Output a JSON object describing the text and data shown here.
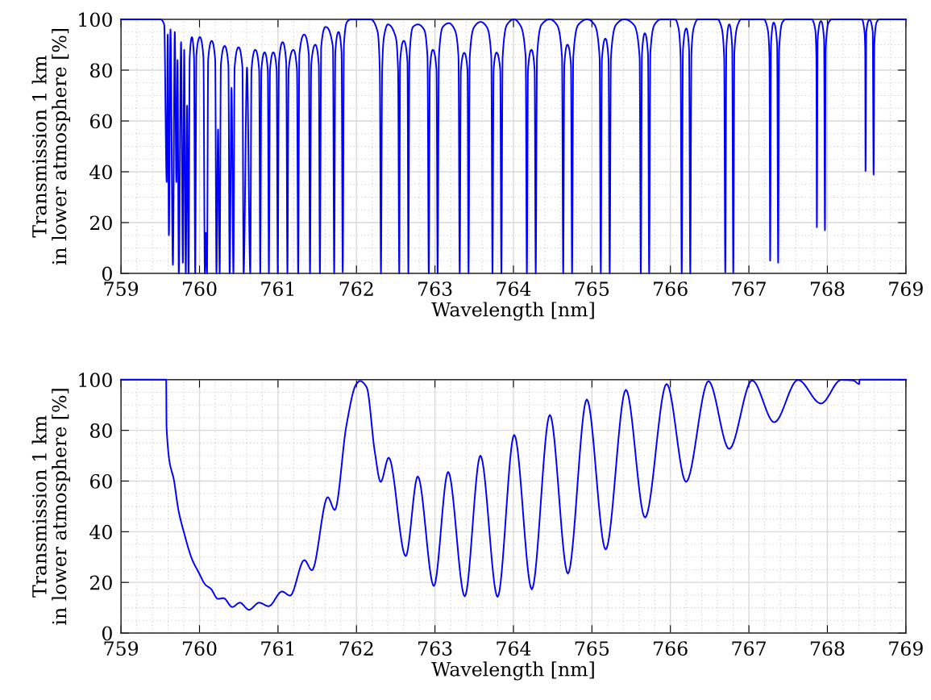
{
  "chart_data": [
    {
      "type": "line",
      "xlabel": "Wavelength [nm]",
      "ylabel": "Transmission 1 km\nin lower atmosphere [%]",
      "xlim": [
        759,
        769
      ],
      "ylim": [
        0,
        100
      ],
      "xticks": [
        759,
        760,
        761,
        762,
        763,
        764,
        765,
        766,
        767,
        768,
        769
      ],
      "yticks": [
        0,
        20,
        40,
        60,
        80,
        100
      ],
      "grid": true,
      "x": [
        759,
        759.5,
        759.55,
        759.582,
        759.595,
        759.61,
        759.63,
        759.661,
        759.685,
        759.705,
        759.72,
        759.736,
        759.765,
        759.788,
        759.805,
        759.825,
        759.842,
        759.86,
        759.875,
        759.903,
        759.93,
        759.945,
        759.96,
        760.005,
        760.05,
        760.068,
        760.082,
        760.096,
        760.11,
        760.155,
        760.2,
        760.216,
        760.236,
        760.257,
        760.272,
        760.32,
        760.368,
        760.384,
        760.408,
        760.432,
        760.447,
        760.497,
        760.547,
        760.562,
        760.605,
        760.647,
        760.662,
        760.71,
        760.76,
        760.774,
        760.788,
        760.829,
        760.87,
        760.884,
        760.898,
        760.94,
        760.983,
        760.997,
        761.012,
        761.059,
        761.105,
        761.12,
        761.135,
        761.196,
        761.242,
        761.257,
        761.272,
        761.334,
        761.393,
        761.408,
        761.423,
        761.475,
        761.52,
        761.534,
        761.55,
        761.606,
        761.7,
        761.716,
        761.73,
        761.771,
        761.81,
        761.825,
        761.84,
        761.88,
        761.93,
        762.18,
        762.27,
        762.297,
        762.312,
        762.327,
        762.35,
        762.4,
        762.5,
        762.53,
        762.545,
        762.555,
        762.603,
        762.65,
        762.661,
        762.675,
        762.72,
        762.784,
        762.86,
        762.905,
        762.921,
        762.935,
        762.973,
        763.02,
        763.034,
        763.05,
        763.1,
        763.178,
        763.25,
        763.3,
        763.315,
        763.33,
        763.373,
        763.415,
        763.428,
        763.443,
        763.5,
        763.582,
        763.66,
        763.718,
        763.733,
        763.747,
        763.784,
        763.832,
        763.846,
        763.862,
        763.92,
        764.007,
        764.08,
        764.156,
        764.171,
        764.185,
        764.229,
        764.27,
        764.284,
        764.3,
        764.36,
        764.462,
        764.55,
        764.619,
        764.634,
        764.648,
        764.688,
        764.733,
        764.747,
        764.762,
        764.83,
        764.942,
        765.03,
        765.098,
        765.113,
        765.127,
        765.171,
        765.212,
        765.226,
        765.242,
        765.31,
        765.414,
        765.53,
        765.608,
        765.623,
        765.637,
        765.674,
        765.715,
        765.729,
        765.745,
        765.8,
        765.88,
        766.06,
        766.1,
        766.13,
        766.144,
        766.16,
        766.202,
        766.238,
        766.253,
        766.268,
        766.3,
        766.35,
        766.6,
        766.65,
        766.685,
        766.699,
        766.713,
        766.75,
        766.787,
        766.801,
        766.815,
        766.86,
        766.9,
        767.19,
        767.24,
        767.262,
        767.271,
        767.282,
        767.315,
        767.36,
        767.373,
        767.385,
        767.43,
        767.47,
        767.8,
        767.845,
        767.86,
        767.866,
        767.876,
        767.918,
        767.958,
        767.969,
        767.978,
        768.02,
        768.06,
        768.44,
        768.47,
        768.482,
        768.486,
        768.496,
        768.536,
        768.578,
        768.589,
        768.598,
        768.63,
        768.66,
        769
      ],
      "series": [
        {
          "color": "#0000ff",
          "values": [
            100,
            100,
            98,
            36,
            94,
            15,
            96,
            3.4,
            95,
            36,
            84,
            0,
            91,
            4.2,
            88,
            0,
            66,
            0,
            85,
            93,
            85,
            0,
            86,
            93,
            85,
            0,
            16,
            0,
            84,
            91.5,
            84,
            0,
            56.7,
            0,
            82,
            89.5,
            82,
            0,
            73,
            0,
            81,
            89,
            81,
            0,
            81,
            0,
            80,
            88,
            80,
            0,
            80,
            87,
            80,
            0,
            80,
            87,
            80,
            0,
            83,
            91,
            83,
            0,
            80,
            88,
            80,
            0,
            86,
            94,
            86,
            0,
            82,
            90,
            82,
            0,
            89,
            97,
            89,
            0,
            87,
            95,
            87,
            0.5,
            90,
            99,
            100,
            100,
            95,
            80,
            0,
            80,
            93,
            98,
            93,
            80,
            0,
            83,
            91.5,
            83,
            0,
            85,
            97,
            98,
            96,
            85,
            0,
            80,
            88,
            80,
            0,
            85,
            97,
            98.5,
            96,
            85,
            0,
            80,
            86.8,
            80,
            0,
            85,
            97,
            99,
            97,
            85,
            0,
            80,
            86.9,
            80,
            0,
            85,
            98,
            100,
            98,
            85,
            0,
            80,
            88,
            80,
            0,
            85,
            98,
            100,
            98,
            85,
            0,
            82,
            90,
            82,
            0,
            85,
            98,
            100,
            98,
            85,
            0,
            84,
            92.4,
            84,
            0,
            85,
            98,
            100,
            98,
            85,
            0,
            86,
            94.5,
            86,
            0,
            87,
            98,
            100,
            100,
            97,
            85,
            0,
            88,
            96.4,
            88,
            0,
            87,
            97,
            100,
            100,
            97,
            85,
            0.4,
            89,
            98,
            89,
            0.2,
            87,
            98,
            100,
            100,
            96,
            85,
            5,
            90,
            98.7,
            90,
            4.2,
            88,
            99,
            100,
            100,
            96,
            85,
            18.2,
            92,
            99.3,
            92,
            17,
            88,
            99,
            100,
            100,
            96,
            88,
            40.3,
            95,
            99.8,
            95,
            38.9,
            90,
            99,
            100,
            100
          ]
        }
      ]
    },
    {
      "type": "line",
      "xlabel": "Wavelength [nm]",
      "ylabel": "Transmission 1 km\nin lower atmosphere [%]",
      "xlim": [
        759,
        769
      ],
      "ylim": [
        0,
        100
      ],
      "xticks": [
        759,
        760,
        761,
        762,
        763,
        764,
        765,
        766,
        767,
        768,
        769
      ],
      "yticks": [
        0,
        20,
        40,
        60,
        80,
        100
      ],
      "grid": true,
      "x": [
        759,
        759.575,
        759.58,
        759.682,
        759.733,
        759.801,
        759.904,
        759.99,
        760.075,
        760.144,
        760.236,
        760.305,
        760.418,
        760.514,
        760.63,
        760.76,
        760.88,
        761.051,
        761.154,
        761.336,
        761.432,
        761.634,
        761.723,
        761.873,
        761.993,
        762.045,
        762.13,
        762.233,
        762.308,
        762.411,
        762.627,
        762.781,
        762.986,
        763.168,
        763.38,
        763.579,
        763.798,
        764.01,
        764.234,
        764.464,
        764.694,
        764.935,
        765.175,
        765.433,
        765.677,
        765.952,
        766.199,
        766.485,
        766.749,
        767.041,
        767.323,
        767.625,
        767.918,
        768.175,
        768.33,
        768.405,
        768.41,
        769
      ],
      "series": [
        {
          "color": "#0000ff",
          "values": [
            100,
            100,
            81.1,
            58.9,
            48.3,
            39.8,
            29.2,
            23.9,
            19.1,
            17.5,
            13.5,
            13.8,
            10.3,
            12,
            9.2,
            12,
            10.6,
            16.4,
            14.8,
            28.8,
            24.8,
            53.6,
            48.6,
            82.2,
            98,
            99.5,
            97,
            71.6,
            59.7,
            69.2,
            30.4,
            61.8,
            18.6,
            63.6,
            14.5,
            70,
            14.3,
            78.2,
            17.3,
            86.1,
            23.5,
            92.2,
            33,
            96,
            45.6,
            98.3,
            59.7,
            99.4,
            72.7,
            99.7,
            83.2,
            99.9,
            90.6,
            99.9,
            99.7,
            98.3,
            100,
            100
          ]
        }
      ]
    }
  ]
}
